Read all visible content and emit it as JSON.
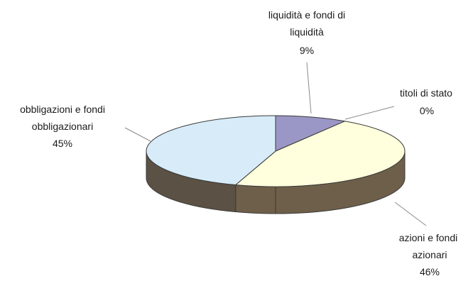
{
  "chart_data": {
    "type": "pie",
    "style": "3d",
    "title": "",
    "slices": [
      {
        "label_lines": [
          "liquidità e fondi di",
          "liquidità"
        ],
        "percent_label": "9%",
        "value": 9,
        "color": "#9a97c6",
        "side_color": "#55536f"
      },
      {
        "label_lines": [
          "titoli di stato"
        ],
        "percent_label": "0%",
        "value": 0,
        "color": "#ffffff",
        "side_color": "#777777"
      },
      {
        "label_lines": [
          "azioni e fondi",
          "azionari"
        ],
        "percent_label": "46%",
        "value": 46,
        "color": "#ffffdd",
        "side_color": "#6e5f4a"
      },
      {
        "label_lines": [
          "obbligazioni e fondi",
          "obbligazionari"
        ],
        "percent_label": "45%",
        "value": 45,
        "color": "#d7ecf8",
        "side_color": "#5b5144"
      }
    ]
  }
}
